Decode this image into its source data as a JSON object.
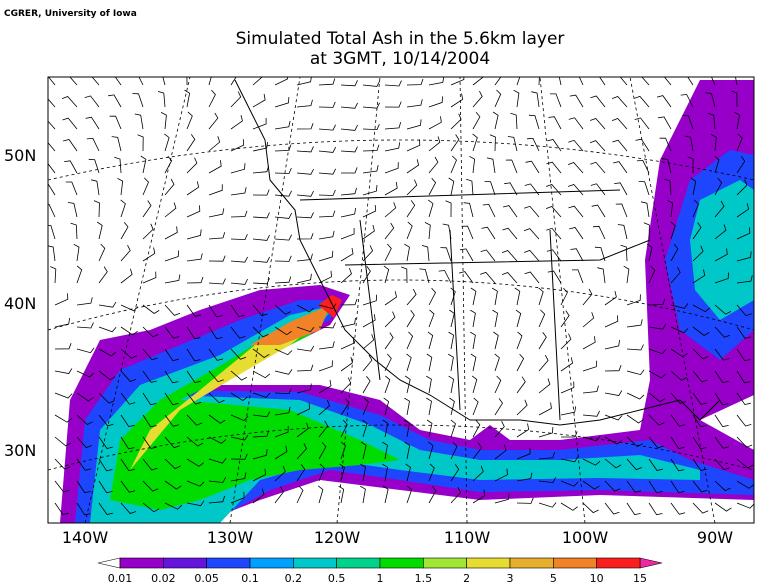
{
  "credit": "CGRER, University of Iowa",
  "title": [
    "Simulated Total Ash in the 5.6km layer",
    "at 3GMT, 10/14/2004"
  ],
  "lat_labels": [
    "50N",
    "40N",
    "30N"
  ],
  "lon_labels": [
    "140W",
    "130W",
    "120W",
    "110W",
    "100W",
    "90W"
  ],
  "colorbar": {
    "levels": [
      0.01,
      0.02,
      0.05,
      0.1,
      0.2,
      0.5,
      1,
      1.5,
      2,
      3,
      5,
      10,
      15
    ],
    "colors": [
      "#9600c8",
      "#6414dc",
      "#1e46ff",
      "#00a0ff",
      "#00c8c8",
      "#00d28c",
      "#00dc00",
      "#a0e632",
      "#e6dc32",
      "#e6af2d",
      "#f08228",
      "#fa1e1e"
    ],
    "under_color": "#ffffff",
    "over_color": "#f028a0"
  }
}
